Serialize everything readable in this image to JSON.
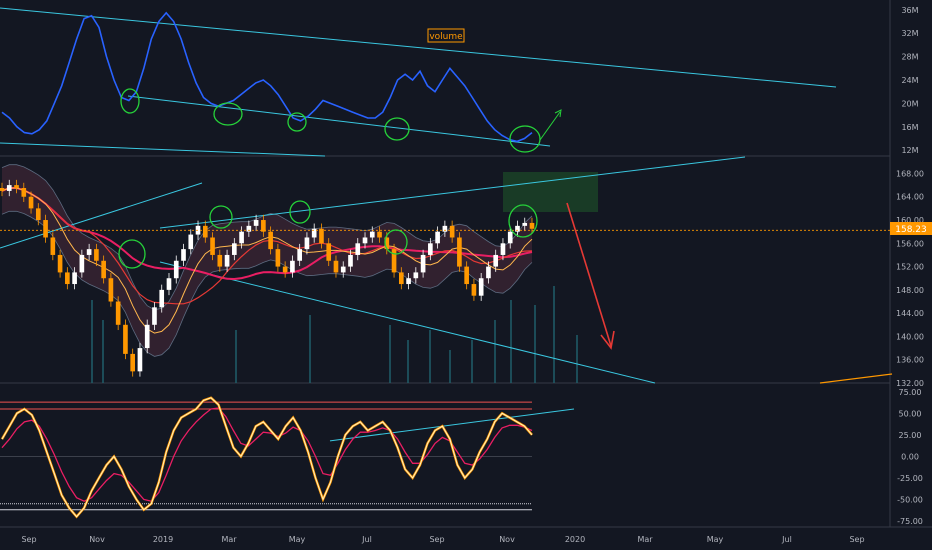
{
  "chart_data": [
    {
      "type": "line",
      "panel": "volume",
      "label": "volume",
      "yticks": [
        "36M",
        "32M",
        "28M",
        "24M",
        "20M",
        "16M",
        "12M"
      ],
      "ylim": [
        11,
        37
      ],
      "series": [
        {
          "values": [
            18.5,
            17.5,
            16,
            15,
            14.8,
            15.5,
            17,
            20,
            23,
            27,
            31,
            34.5,
            35,
            33,
            28,
            24,
            21,
            20.5,
            22,
            26,
            31,
            34,
            35.5,
            34,
            31,
            27,
            23.5,
            21,
            20,
            19.5,
            20,
            20.5,
            21.5,
            22.5,
            23.5,
            24,
            23,
            21.5,
            19.5,
            17.5,
            17,
            17.8,
            19,
            20.5,
            20,
            19.5,
            19,
            18.5,
            18,
            17.5,
            17.5,
            18.5,
            21,
            24,
            25,
            24,
            25.5,
            23,
            22,
            24,
            26,
            24.5,
            23,
            21,
            19,
            17,
            15.5,
            14.5,
            13.8,
            13.5,
            14,
            15
          ]
        }
      ],
      "annotation_circles": 5
    },
    {
      "type": "bar",
      "panel": "price",
      "yticks": [
        "168.00",
        "164.00",
        "160.00",
        "156.00",
        "152.00",
        "148.00",
        "144.00",
        "140.00",
        "136.00",
        "132.00"
      ],
      "ylim": [
        132,
        171
      ],
      "last_price": "158.23",
      "close": [
        165,
        166,
        165.5,
        164,
        162,
        160,
        157,
        154,
        151,
        149,
        151,
        154,
        155,
        153,
        150,
        146,
        142,
        137,
        134,
        138,
        142,
        145,
        148,
        150,
        153,
        155,
        157.5,
        159,
        157,
        154,
        152,
        154,
        156,
        158,
        159,
        160,
        158,
        155,
        152,
        151,
        153,
        155,
        157,
        158.5,
        156,
        153,
        151,
        152,
        154,
        156,
        157,
        158,
        157,
        155,
        151,
        149,
        150,
        151,
        154,
        156,
        158,
        159,
        157,
        152,
        149,
        147,
        150,
        152,
        154,
        156,
        158,
        159,
        159.5,
        158.5
      ],
      "annotation_circles": 5
    },
    {
      "type": "line",
      "panel": "oscillator",
      "yticks": [
        "75.00",
        "50.00",
        "25.00",
        "0.00",
        "-25.00",
        "-50.00",
        "-75.00"
      ],
      "ylim": [
        -82,
        84
      ],
      "series": [
        {
          "values": [
            20,
            35,
            50,
            55,
            48,
            30,
            5,
            -20,
            -45,
            -60,
            -70,
            -60,
            -40,
            -25,
            -10,
            0,
            -15,
            -35,
            -50,
            -62,
            -55,
            -30,
            5,
            30,
            45,
            50,
            55,
            65,
            68,
            60,
            35,
            10,
            0,
            15,
            35,
            40,
            30,
            20,
            35,
            45,
            30,
            5,
            -25,
            -50,
            -30,
            0,
            25,
            35,
            40,
            30,
            35,
            40,
            30,
            10,
            -15,
            -25,
            -10,
            15,
            30,
            35,
            20,
            -10,
            -25,
            -15,
            5,
            20,
            40,
            50,
            45,
            40,
            35,
            25
          ]
        },
        {
          "values": [
            10,
            20,
            32,
            40,
            42,
            35,
            20,
            2,
            -18,
            -35,
            -48,
            -52,
            -48,
            -38,
            -28,
            -20,
            -22,
            -30,
            -40,
            -50,
            -52,
            -42,
            -22,
            0,
            18,
            30,
            40,
            48,
            55,
            56,
            46,
            30,
            15,
            12,
            20,
            28,
            27,
            23,
            27,
            34,
            30,
            18,
            0,
            -20,
            -22,
            -8,
            8,
            20,
            28,
            28,
            30,
            33,
            30,
            20,
            5,
            -8,
            -8,
            2,
            15,
            22,
            18,
            5,
            -8,
            -10,
            -3,
            8,
            22,
            33,
            36,
            36,
            34,
            30
          ]
        }
      ],
      "levels": [
        50,
        -50
      ]
    }
  ],
  "x_axis": [
    "Sep",
    "Nov",
    "2019",
    "Mar",
    "May",
    "Jul",
    "Sep",
    "Nov",
    "2020",
    "Mar",
    "May",
    "Jul",
    "Sep"
  ],
  "colors": {
    "background": "#131722",
    "text": "#b2b5be",
    "volume_line": "#2962ff",
    "trend_line": "#3ac7e0",
    "circle": "#26d23a",
    "up_candle": "#ffffff",
    "down_candle": "#ff9800",
    "ma_slow": "#e91e63",
    "ma_mid": "#e53935",
    "ma_fast": "#ffb74d",
    "bands": "#5d6b80",
    "rsi": "#fff3c4",
    "rsi_signal": "#e91e63",
    "level_line": "#ef5350",
    "arrow": "#e53935",
    "price_tag": "#ff9800",
    "green_box": "#1f5a2a"
  }
}
